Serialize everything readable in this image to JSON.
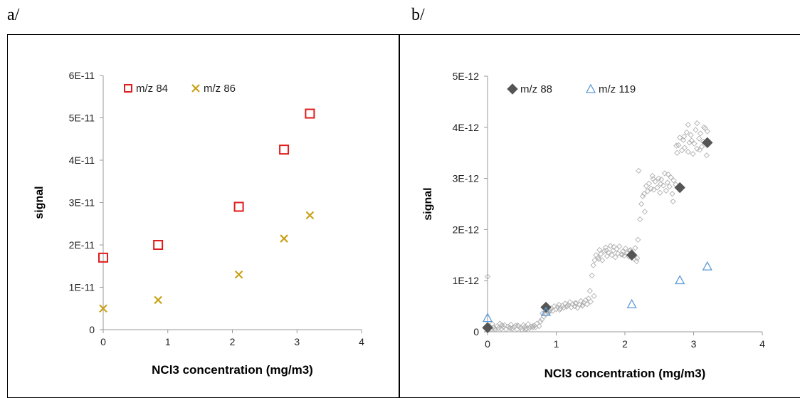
{
  "panels": [
    {
      "label": "a/"
    },
    {
      "label": "b/"
    }
  ],
  "chart_data": [
    {
      "type": "scatter",
      "xlabel": "NCl3 concentration (mg/m3)",
      "ylabel": "signal",
      "xlim": [
        0,
        4
      ],
      "ylim": [
        0,
        6e-11
      ],
      "xticks": [
        "0",
        "1",
        "2",
        "3",
        "4"
      ],
      "yticks": [
        "0",
        "1E-11",
        "2E-11",
        "3E-11",
        "4E-11",
        "5E-11",
        "6E-11"
      ],
      "legend_position": "top",
      "series": [
        {
          "name": "m/z 84",
          "marker": "square",
          "color": "#e01b1b",
          "x": [
            0,
            0.85,
            2.1,
            2.8,
            3.2
          ],
          "y": [
            1.7e-11,
            2e-11,
            2.9e-11,
            4.25e-11,
            5.1e-11
          ]
        },
        {
          "name": "m/z 86",
          "marker": "x",
          "color": "#c9a21a",
          "x": [
            0,
            0.85,
            2.1,
            2.8,
            3.2
          ],
          "y": [
            5e-12,
            7e-12,
            1.3e-11,
            2.15e-11,
            2.7e-11
          ]
        }
      ]
    },
    {
      "type": "scatter",
      "xlabel": "NCl3 concentration (mg/m3)",
      "ylabel": "signal",
      "xlim": [
        0,
        4
      ],
      "ylim": [
        0,
        5e-12
      ],
      "xticks": [
        "0",
        "1",
        "2",
        "3",
        "4"
      ],
      "yticks": [
        "0",
        "1E-12",
        "2E-12",
        "3E-12",
        "4E-12",
        "5E-12"
      ],
      "legend_position": "top",
      "series": [
        {
          "name": "m/z 88",
          "marker": "diamond",
          "color": "#555555",
          "x": [
            0,
            0.85,
            2.1,
            2.8,
            3.2
          ],
          "y": [
            8e-14,
            4.8e-13,
            1.5e-12,
            2.82e-12,
            3.7e-12
          ]
        },
        {
          "name": "m/z 119",
          "marker": "triangle",
          "color": "#5b9bd5",
          "x": [
            0,
            0.85,
            2.1,
            2.8,
            3.2
          ],
          "y": [
            2.7e-13,
            3.9e-13,
            5.4e-13,
            1.01e-12,
            1.28e-12
          ]
        },
        {
          "marker": "diamond-open",
          "color": "#b0b0b0",
          "x": [
            0.0,
            0.02,
            0.05,
            0.07,
            0.09,
            0.11,
            0.14,
            0.16,
            0.18,
            0.2,
            0.23,
            0.25,
            0.27,
            0.3,
            0.32,
            0.34,
            0.36,
            0.39,
            0.41,
            0.43,
            0.45,
            0.48,
            0.5,
            0.52,
            0.54,
            0.57,
            0.59,
            0.61,
            0.63,
            0.66,
            0.68,
            0.7,
            0.72,
            0.75,
            0.77,
            0.79,
            0.82,
            0.84,
            0.86,
            0.88,
            0.91,
            0.93,
            0.95,
            0.97,
            1.0,
            1.02,
            1.04,
            1.06,
            1.09,
            1.11,
            1.13,
            1.15,
            1.18,
            1.2,
            1.22,
            1.24,
            1.27,
            1.29,
            1.31,
            1.34,
            1.36,
            1.38,
            1.4,
            1.43,
            1.45,
            1.47,
            1.49,
            1.52,
            1.54,
            1.56,
            1.58,
            1.61,
            1.63,
            1.65,
            1.67,
            1.7,
            1.72,
            1.74,
            1.76,
            1.79,
            1.81,
            1.83,
            1.86,
            1.88,
            1.9,
            1.92,
            1.95,
            1.97,
            1.99,
            2.01,
            2.04,
            2.06,
            2.08,
            2.1,
            2.13,
            2.15,
            2.17,
            2.19,
            2.22,
            2.24,
            2.26,
            2.28,
            2.31,
            2.33,
            2.35,
            2.38,
            2.4,
            2.42,
            2.44,
            2.47,
            2.49,
            2.51,
            2.53,
            2.56,
            2.58,
            2.6,
            2.62,
            2.65,
            2.67,
            2.69,
            2.71,
            2.74,
            2.76,
            2.78,
            2.8,
            2.83,
            2.85,
            2.87,
            2.9,
            2.92,
            2.94,
            2.96,
            2.99,
            3.01,
            3.03,
            3.05,
            3.08,
            3.1,
            3.12,
            3.14,
            3.17,
            3.19,
            3.21,
            0.01,
            0.1,
            0.21,
            0.33,
            0.44,
            0.55,
            0.66,
            0.8,
            0.9,
            1.05,
            1.16,
            1.28,
            1.39,
            1.5,
            1.62,
            1.73,
            1.84,
            1.96,
            2.07,
            2.18,
            2.29,
            2.41,
            2.52,
            2.63,
            2.75,
            2.86,
            2.97,
            3.09,
            3.2,
            0.0,
            1.55,
            2.2,
            2.7,
            2.92,
            3.05,
            3.15
          ],
          "y": [
            8e-14,
            1.2e-13,
            5e-14,
            1.5e-13,
            9e-14,
            4e-14,
            1.1e-13,
            7e-14,
            1.6e-13,
            6e-14,
            9e-14,
            1.3e-13,
            5e-14,
            1e-13,
            8e-14,
            1.4e-13,
            6e-14,
            9e-14,
            1.2e-13,
            5e-14,
            1.1e-13,
            8e-14,
            4e-14,
            1.3e-13,
            9e-14,
            6e-14,
            1.5e-13,
            7e-14,
            1e-13,
            8e-14,
            1.2e-13,
            9e-14,
            1.6e-13,
            1.1e-13,
            2e-13,
            2.4e-13,
            3e-13,
            3.5e-13,
            4e-13,
            3.8e-13,
            4.2e-13,
            4.6e-13,
            4.1e-13,
            5e-13,
            4.4e-13,
            4.8e-13,
            5.3e-13,
            4.6e-13,
            5.1e-13,
            4.7e-13,
            5.5e-13,
            4.9e-13,
            5.2e-13,
            5.8e-13,
            4.8e-13,
            5.4e-13,
            5e-13,
            5.6e-13,
            4.7e-13,
            5.3e-13,
            6e-13,
            5.1e-13,
            5.7e-13,
            6.2e-13,
            5.4e-13,
            6.5e-13,
            8e-13,
            1.1e-12,
            1.3e-12,
            1.4e-12,
            1.5e-12,
            1.45e-12,
            1.6e-12,
            1.52e-12,
            1.4e-12,
            1.58e-12,
            1.65e-12,
            1.48e-12,
            1.55e-12,
            1.68e-12,
            1.5e-12,
            1.59e-12,
            1.46e-12,
            1.62e-12,
            1.53e-12,
            1.67e-12,
            1.51e-12,
            1.57e-12,
            1.49e-12,
            1.63e-12,
            1.54e-12,
            1.47e-12,
            1.6e-12,
            1.56e-12,
            1.43e-12,
            1.64e-12,
            1.38e-12,
            1.8e-12,
            2.2e-12,
            2.5e-12,
            2.65e-12,
            2.7e-12,
            2.85e-12,
            2.75e-12,
            2.9e-12,
            2.8e-12,
            3.05e-12,
            2.78e-12,
            2.94e-12,
            2.82e-12,
            3e-12,
            2.72e-12,
            2.98e-12,
            2.86e-12,
            3.1e-12,
            2.76e-12,
            2.92e-12,
            2.84e-12,
            3.02e-12,
            2.7e-12,
            2.96e-12,
            2.88e-12,
            3.5e-12,
            3.65e-12,
            3.8e-12,
            3.55e-12,
            3.75e-12,
            3.6e-12,
            3.9e-12,
            3.52e-12,
            3.7e-12,
            3.85e-12,
            3.48e-12,
            3.68e-12,
            3.95e-12,
            3.58e-12,
            3.78e-12,
            3.88e-12,
            3.62e-12,
            3.72e-12,
            3.98e-12,
            3.45e-12,
            3.66e-12,
            1e-13,
            6e-14,
            1.3e-13,
            7e-14,
            1.2e-13,
            5e-14,
            1.1e-13,
            3.6e-13,
            3.9e-13,
            4.3e-13,
            5.1e-13,
            5.6e-13,
            5.2e-13,
            5.9e-13,
            1.42e-12,
            1.59e-12,
            1.66e-12,
            1.51e-12,
            1.58e-12,
            1.44e-12,
            2.35e-12,
            2.99e-12,
            2.89e-12,
            3.08e-12,
            3.64e-12,
            3.82e-12,
            3.74e-12,
            3.56e-12,
            3.92e-12,
            1.08e-12,
            7e-13,
            3.15e-12,
            2.55e-12,
            4.05e-12,
            4.08e-12,
            4e-12
          ]
        }
      ]
    }
  ]
}
